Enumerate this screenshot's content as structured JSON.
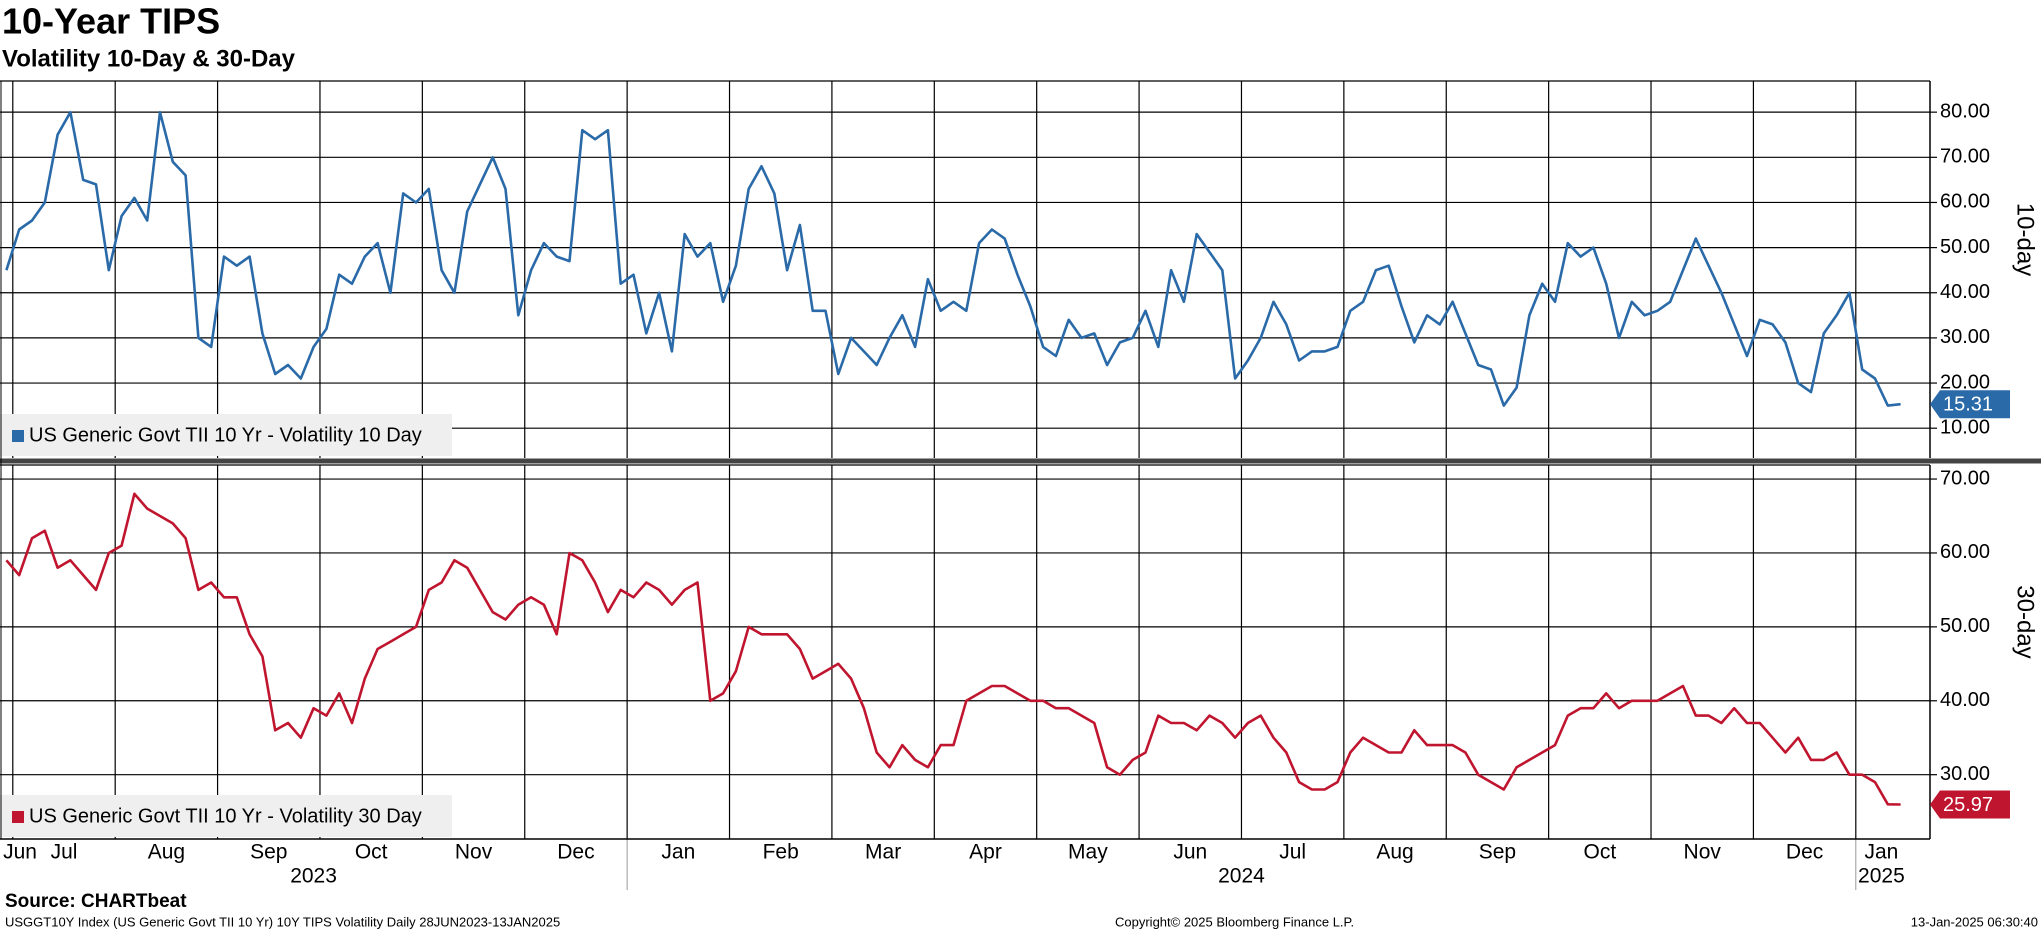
{
  "title": "10-Year TIPS",
  "subtitle": "Volatility 10-Day & 30-Day",
  "source": "Source: CHARTbeat",
  "footer_left": "USGGT10Y Index (US Generic Govt TII 10 Yr) 10Y TIPS Volatility  Daily 28JUN2023-13JAN2025",
  "footer_center": "Copyright© 2025 Bloomberg Finance L.P.",
  "footer_right": "13-Jan-2025 06:30:40",
  "chart_data": {
    "type": "line",
    "grid": true,
    "x": [
      "2023-06",
      "2023-07",
      "2023-07",
      "2023-07",
      "2023-07",
      "2023-07",
      "2023-07",
      "2023-07",
      "2023-07",
      "2023-08",
      "2023-08",
      "2023-08",
      "2023-08",
      "2023-08",
      "2023-08",
      "2023-08",
      "2023-08",
      "2023-09",
      "2023-09",
      "2023-09",
      "2023-09",
      "2023-09",
      "2023-09",
      "2023-09",
      "2023-09",
      "2023-10",
      "2023-10",
      "2023-10",
      "2023-10",
      "2023-10",
      "2023-10",
      "2023-10",
      "2023-10",
      "2023-11",
      "2023-11",
      "2023-11",
      "2023-11",
      "2023-11",
      "2023-11",
      "2023-11",
      "2023-11",
      "2023-12",
      "2023-12",
      "2023-12",
      "2023-12",
      "2023-12",
      "2023-12",
      "2023-12",
      "2023-12",
      "2024-01",
      "2024-01",
      "2024-01",
      "2024-01",
      "2024-01",
      "2024-01",
      "2024-01",
      "2024-01",
      "2024-02",
      "2024-02",
      "2024-02",
      "2024-02",
      "2024-02",
      "2024-02",
      "2024-02",
      "2024-02",
      "2024-03",
      "2024-03",
      "2024-03",
      "2024-03",
      "2024-03",
      "2024-03",
      "2024-03",
      "2024-03",
      "2024-04",
      "2024-04",
      "2024-04",
      "2024-04",
      "2024-04",
      "2024-04",
      "2024-04",
      "2024-04",
      "2024-05",
      "2024-05",
      "2024-05",
      "2024-05",
      "2024-05",
      "2024-05",
      "2024-05",
      "2024-05",
      "2024-06",
      "2024-06",
      "2024-06",
      "2024-06",
      "2024-06",
      "2024-06",
      "2024-06",
      "2024-06",
      "2024-07",
      "2024-07",
      "2024-07",
      "2024-07",
      "2024-07",
      "2024-07",
      "2024-07",
      "2024-07",
      "2024-08",
      "2024-08",
      "2024-08",
      "2024-08",
      "2024-08",
      "2024-08",
      "2024-08",
      "2024-08",
      "2024-09",
      "2024-09",
      "2024-09",
      "2024-09",
      "2024-09",
      "2024-09",
      "2024-09",
      "2024-09",
      "2024-10",
      "2024-10",
      "2024-10",
      "2024-10",
      "2024-10",
      "2024-10",
      "2024-10",
      "2024-10",
      "2024-11",
      "2024-11",
      "2024-11",
      "2024-11",
      "2024-11",
      "2024-11",
      "2024-11",
      "2024-11",
      "2024-12",
      "2024-12",
      "2024-12",
      "2024-12",
      "2024-12",
      "2024-12",
      "2024-12",
      "2024-12",
      "2025-01",
      "2025-01",
      "2025-01",
      "2025-01"
    ],
    "xticks": [
      {
        "value": "2023-06",
        "label": "Jun"
      },
      {
        "value": "2023-07",
        "label": "Jul"
      },
      {
        "value": "2023-08",
        "label": "Aug"
      },
      {
        "value": "2023-09",
        "label": "Sep"
      },
      {
        "value": "2023-10",
        "label": "Oct"
      },
      {
        "value": "2023-11",
        "label": "Nov"
      },
      {
        "value": "2023-12",
        "label": "Dec"
      },
      {
        "value": "2024-01",
        "label": "Jan"
      },
      {
        "value": "2024-02",
        "label": "Feb"
      },
      {
        "value": "2024-03",
        "label": "Mar"
      },
      {
        "value": "2024-04",
        "label": "Apr"
      },
      {
        "value": "2024-05",
        "label": "May"
      },
      {
        "value": "2024-06",
        "label": "Jun"
      },
      {
        "value": "2024-07",
        "label": "Jul"
      },
      {
        "value": "2024-08",
        "label": "Aug"
      },
      {
        "value": "2024-09",
        "label": "Sep"
      },
      {
        "value": "2024-10",
        "label": "Oct"
      },
      {
        "value": "2024-11",
        "label": "Nov"
      },
      {
        "value": "2024-12",
        "label": "Dec"
      },
      {
        "value": "2025-01",
        "label": "Jan"
      }
    ],
    "years": [
      "2023",
      "2024",
      "2025"
    ],
    "panels": [
      {
        "y_label": "10-day",
        "ylim": [
          3.4,
          86.9
        ],
        "yticks": [
          {
            "value": 10,
            "label": "10.00"
          },
          {
            "value": 20,
            "label": "20.00"
          },
          {
            "value": 30,
            "label": "30.00"
          },
          {
            "value": 40,
            "label": "40.00"
          },
          {
            "value": 50,
            "label": "50.00"
          },
          {
            "value": 60,
            "label": "60.00"
          },
          {
            "value": 70,
            "label": "70.00"
          },
          {
            "value": 80,
            "label": "80.00"
          }
        ],
        "series": [
          {
            "name": "US Generic Govt TII 10 Yr - Volatility 10 Day",
            "color": "#2a6aa8",
            "values": [
              45,
              54,
              56,
              60,
              75,
              80,
              65,
              64,
              45,
              57,
              61,
              56,
              80,
              69,
              66,
              30,
              28,
              48,
              46,
              48,
              31,
              22,
              24,
              21,
              28,
              32,
              44,
              42,
              48,
              51,
              40,
              62,
              60,
              63,
              45,
              40,
              58,
              64,
              70,
              63,
              35,
              45,
              51,
              48,
              47,
              76,
              74,
              76,
              42,
              44,
              31,
              40,
              27,
              53,
              48,
              51,
              38,
              46,
              63,
              68,
              62,
              45,
              55,
              36,
              36,
              22,
              30,
              27,
              24,
              30,
              35,
              28,
              43,
              36,
              38,
              36,
              51,
              54,
              52,
              44,
              37,
              28,
              26,
              34,
              30,
              31,
              24,
              29,
              30,
              36,
              28,
              45,
              38,
              53,
              49,
              45,
              21,
              25,
              30,
              38,
              33,
              25,
              27,
              27,
              28,
              36,
              38,
              45,
              46,
              37,
              29,
              35,
              33,
              38,
              31,
              24,
              23,
              15,
              19,
              35,
              42,
              38,
              51,
              48,
              50,
              42,
              30,
              38,
              35,
              36,
              38,
              45,
              52,
              46,
              40,
              33,
              26,
              34,
              33,
              29,
              20,
              18,
              31,
              35,
              40,
              23,
              21,
              15,
              15.31
            ]
          }
        ]
      },
      {
        "y_label": "30-day",
        "ylim": [
          21.3,
          71.9
        ],
        "yticks": [
          {
            "value": 30,
            "label": "30.00"
          },
          {
            "value": 40,
            "label": "40.00"
          },
          {
            "value": 50,
            "label": "50.00"
          },
          {
            "value": 60,
            "label": "60.00"
          },
          {
            "value": 70,
            "label": "70.00"
          }
        ],
        "series": [
          {
            "name": "US Generic Govt TII 10 Yr - Volatility 30 Day",
            "color": "#c0152f",
            "values": [
              59,
              57,
              62,
              63,
              58,
              59,
              57,
              55,
              60,
              61,
              68,
              66,
              65,
              64,
              62,
              55,
              56,
              54,
              54,
              49,
              46,
              36,
              37,
              35,
              39,
              38,
              41,
              37,
              43,
              47,
              48,
              49,
              50,
              55,
              56,
              59,
              58,
              55,
              52,
              51,
              53,
              54,
              53,
              49,
              60,
              59,
              56,
              52,
              55,
              54,
              56,
              55,
              53,
              55,
              56,
              40,
              41,
              44,
              50,
              49,
              49,
              49,
              47,
              43,
              44,
              45,
              43,
              39,
              33,
              31,
              34,
              32,
              31,
              34,
              34,
              40,
              41,
              42,
              42,
              41,
              40,
              40,
              39,
              39,
              38,
              37,
              31,
              30,
              32,
              33,
              38,
              37,
              37,
              36,
              38,
              37,
              35,
              37,
              38,
              35,
              33,
              29,
              28,
              28,
              29,
              33,
              35,
              34,
              33,
              33,
              36,
              34,
              34,
              34,
              33,
              30,
              29,
              28,
              31,
              32,
              33,
              34,
              38,
              39,
              39,
              41,
              39,
              40,
              40,
              40,
              41,
              42,
              38,
              38,
              37,
              39,
              37,
              37,
              35,
              33,
              35,
              32,
              32,
              33,
              30,
              30,
              29,
              26,
              25.97
            ]
          }
        ]
      }
    ]
  }
}
